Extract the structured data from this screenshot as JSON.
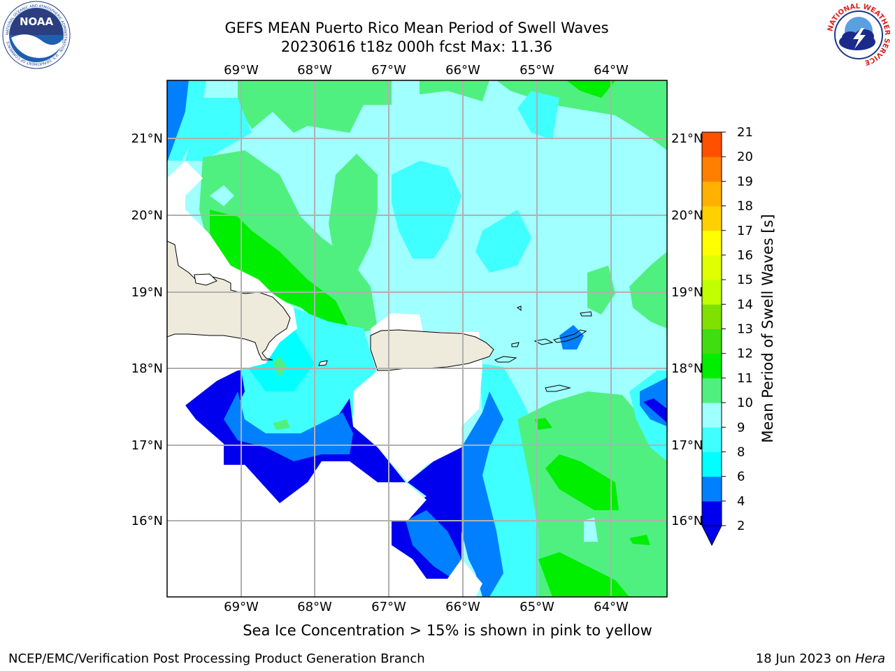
{
  "header": {
    "title_line1": "GEFS MEAN Puerto Rico Mean Period of Swell Waves",
    "title_line2": "20230616 t18z 000h fcst   Max: 11.36"
  },
  "logos": {
    "left": {
      "icon": "noaa-logo",
      "text": "NOAA",
      "ring_text": "NATIONAL OCEANIC AND ATMOSPHERIC ADMINISTRATION · U.S. DEPARTMENT OF COMMERCE"
    },
    "right": {
      "icon": "nws-logo",
      "ring_text": "NATIONAL WEATHER SERVICE"
    }
  },
  "map": {
    "lon_labels": [
      "69°W",
      "68°W",
      "67°W",
      "66°W",
      "65°W",
      "64°W"
    ],
    "lat_labels": [
      "21°N",
      "20°N",
      "19°N",
      "18°N",
      "17°N",
      "16°N"
    ],
    "land_color": "#eeeadc",
    "missing_color": "#ffffff"
  },
  "colorbar": {
    "label": "Mean Period of Swell Waves [s]",
    "ticks": [
      "2",
      "4",
      "6",
      "8",
      "9",
      "10",
      "11",
      "12",
      "13",
      "14",
      "15",
      "16",
      "17",
      "18",
      "19",
      "20",
      "21"
    ],
    "colors": [
      "#0000ee",
      "#0080ff",
      "#00ffff",
      "#40ffff",
      "#a0ffff",
      "#50f080",
      "#00ee00",
      "#40dd10",
      "#80e000",
      "#c0ff00",
      "#e0ff00",
      "#ffff00",
      "#ffd000",
      "#ffb000",
      "#ff8000",
      "#ff5000",
      "#ff2000",
      "#ff0000"
    ],
    "under_color": "#0000ee"
  },
  "footer": {
    "subtitle": "Sea Ice Concentration > 15% is shown in pink to yellow",
    "credit": "NCEP/EMC/Verification Post Processing Product Generation Branch",
    "date": "18 Jun 2023 on ",
    "host": "Hera"
  }
}
